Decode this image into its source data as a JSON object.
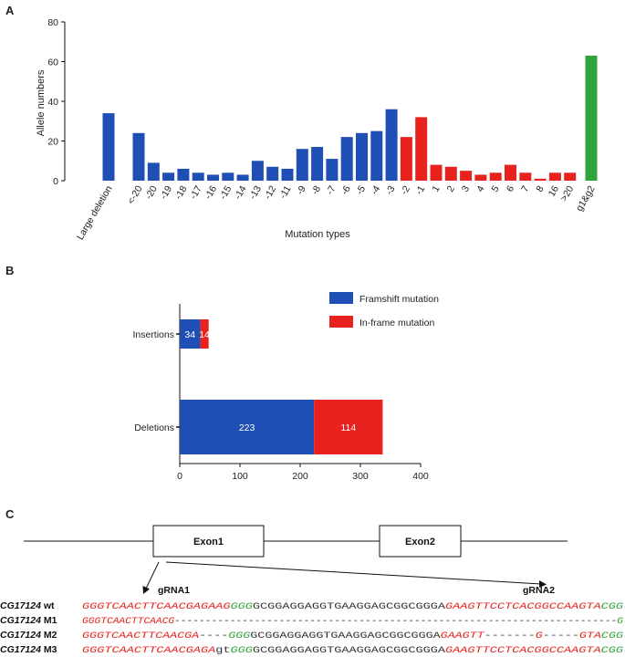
{
  "panels": {
    "a": "A",
    "b": "B",
    "c": "C"
  },
  "colors": {
    "blue": "#1f4fb4",
    "red": "#e8231f",
    "green": "#2ea43a",
    "seq_red": "#e8231f",
    "seq_green": "#2ea43a",
    "seq_black": "#333333"
  },
  "chart_data": [
    {
      "type": "bar",
      "panel": "A",
      "title": "",
      "xlabel": "Mutation types",
      "ylabel": "Allele numbers",
      "ylim": [
        0,
        80
      ],
      "yticks": [
        0,
        20,
        40,
        60,
        80
      ],
      "categories": [
        "Large deletion",
        "<-20",
        "-20",
        "-19",
        "-18",
        "-17",
        "-16",
        "-15",
        "-14",
        "-13",
        "-12",
        "-11",
        "-9",
        "-8",
        "-7",
        "-6",
        "-5",
        "-4",
        "-3",
        "-2",
        "-1",
        "1",
        "2",
        "3",
        "4",
        "5",
        "6",
        "7",
        "8",
        "16",
        ">20",
        "g1&g2"
      ],
      "values": [
        34,
        24,
        9,
        4,
        6,
        4,
        3,
        4,
        3,
        10,
        7,
        6,
        16,
        17,
        11,
        22,
        24,
        25,
        36,
        22,
        32,
        8,
        7,
        5,
        3,
        4,
        8,
        4,
        1,
        4,
        4,
        63
      ],
      "bar_colors": [
        "blue",
        "blue",
        "blue",
        "blue",
        "blue",
        "blue",
        "blue",
        "blue",
        "blue",
        "blue",
        "blue",
        "blue",
        "blue",
        "blue",
        "blue",
        "blue",
        "blue",
        "blue",
        "blue",
        "red",
        "red",
        "red",
        "red",
        "red",
        "red",
        "red",
        "red",
        "red",
        "red",
        "red",
        "red",
        "green"
      ],
      "grid": false
    },
    {
      "type": "bar",
      "orientation": "horizontal",
      "stacked": true,
      "panel": "B",
      "categories": [
        "Insertions",
        "Deletions"
      ],
      "series": [
        {
          "name": "Framshift mutation",
          "color": "blue",
          "values": [
            34,
            223
          ]
        },
        {
          "name": "In-frame mutation",
          "color": "red",
          "values": [
            14,
            114
          ]
        }
      ],
      "xlim": [
        0,
        400
      ],
      "xticks": [
        0,
        100,
        200,
        300,
        400
      ],
      "legend_position": "top-right",
      "grid": false
    }
  ],
  "gene_diagram": {
    "exons": [
      "Exon1",
      "Exon2"
    ],
    "grnas": [
      "gRNA1",
      "gRNA2"
    ]
  },
  "sequences": [
    {
      "name": "CG17124",
      "suffix": "wt",
      "segments": [
        {
          "text": "GGGTCAACTTCAACGAGAAG",
          "color": "red",
          "italic": true
        },
        {
          "text": "GGG",
          "color": "green",
          "italic": true
        },
        {
          "text": "GCGGAGGAGGTGAAGGAGCGGCGGGA",
          "color": "black",
          "italic": false
        },
        {
          "text": "GAAGTTCCTCACGGCCAAGTA",
          "color": "red",
          "italic": true
        },
        {
          "text": "CGG",
          "color": "green",
          "italic": true
        }
      ]
    },
    {
      "name": "CG17124",
      "suffix": "M1",
      "segments": [
        {
          "text": "GGGTCAACTTCAACG",
          "color": "red",
          "italic": true
        },
        {
          "text": "------------------------------------------------------------------------",
          "color": "black",
          "italic": false
        },
        {
          "text": "G",
          "color": "green",
          "italic": true
        }
      ]
    },
    {
      "name": "CG17124",
      "suffix": "M2",
      "segments": [
        {
          "text": "GGGTCAACTTCAACGA",
          "color": "red",
          "italic": true
        },
        {
          "text": "----",
          "color": "black",
          "italic": false
        },
        {
          "text": "GGG",
          "color": "green",
          "italic": true
        },
        {
          "text": "GCGGAGGAGGTGAAGGAGCGGCGGGA",
          "color": "black",
          "italic": false
        },
        {
          "text": "GAAGTT",
          "color": "red",
          "italic": true
        },
        {
          "text": "-------",
          "color": "black",
          "italic": false
        },
        {
          "text": "G",
          "color": "red",
          "italic": true
        },
        {
          "text": "-----",
          "color": "black",
          "italic": false
        },
        {
          "text": "GTA",
          "color": "red",
          "italic": true
        },
        {
          "text": "CGG",
          "color": "green",
          "italic": true
        }
      ]
    },
    {
      "name": "CG17124",
      "suffix": "M3",
      "segments": [
        {
          "text": "GGGTCAACTTCAACGAGA",
          "color": "red",
          "italic": true
        },
        {
          "text": "gt",
          "color": "black",
          "italic": false
        },
        {
          "text": "GGG",
          "color": "green",
          "italic": true
        },
        {
          "text": "GCGGAGGAGGTGAAGGAGCGGCGGGA",
          "color": "black",
          "italic": false
        },
        {
          "text": "GAAGTTCCTCACGGCCAAGTA",
          "color": "red",
          "italic": true
        },
        {
          "text": "CGG",
          "color": "green",
          "italic": true
        }
      ]
    }
  ]
}
